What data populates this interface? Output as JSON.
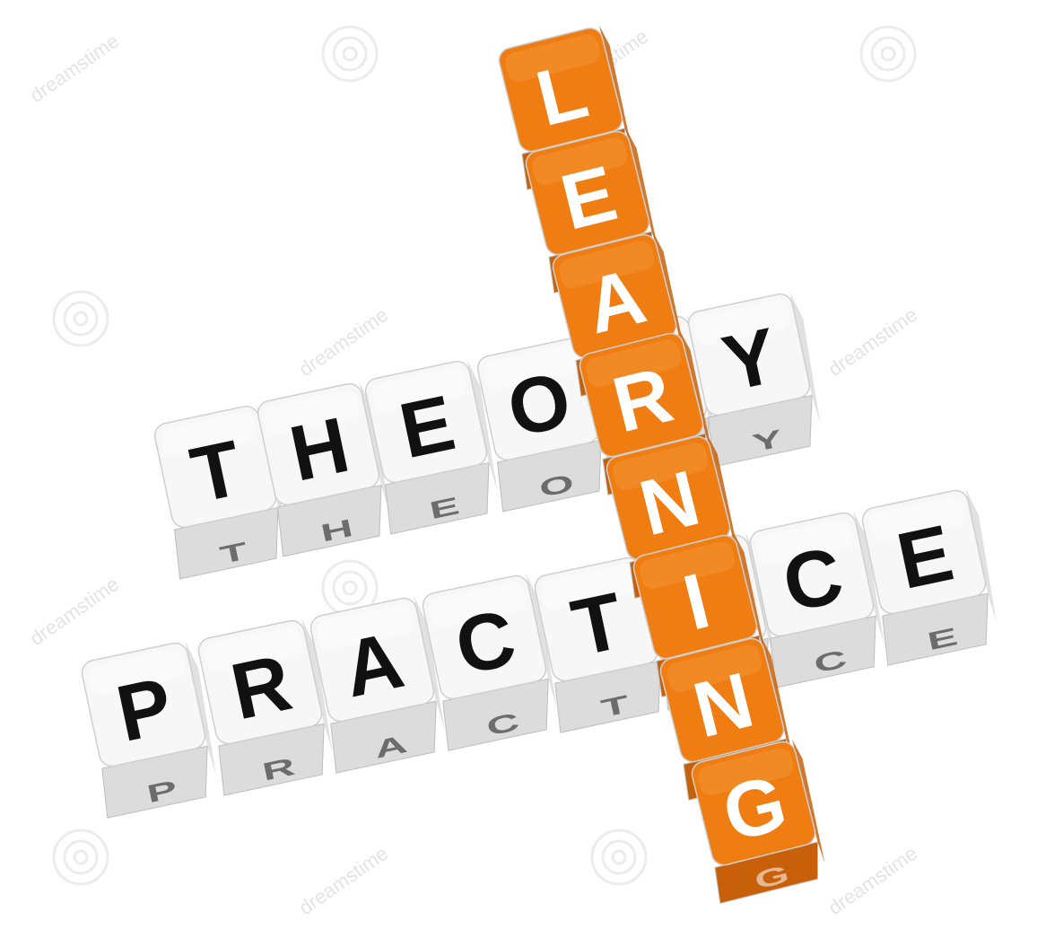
{
  "words": {
    "learning": {
      "letters": [
        "L",
        "E",
        "A",
        "R",
        "N",
        "I",
        "N",
        "G"
      ],
      "face_color": "#ef7d12",
      "side_color": "#c8600a",
      "top_color": "#f5a04a",
      "letter_color": "#ffffff"
    },
    "theory": {
      "letters": [
        "T",
        "H",
        "E",
        "O",
        "R",
        "Y"
      ],
      "face_color": "#f7f7f7",
      "side_color": "#dcdcdc",
      "top_color": "#ffffff",
      "letter_color": "#111111"
    },
    "practice": {
      "letters": [
        "P",
        "R",
        "A",
        "C",
        "T",
        "I",
        "C",
        "E"
      ],
      "face_color": "#f7f7f7",
      "side_color": "#dcdcdc",
      "top_color": "#ffffff",
      "letter_color": "#111111"
    }
  },
  "watermark": {
    "text": "dreamstime",
    "color": "#e4e4e4"
  },
  "background_color": "#ffffff"
}
